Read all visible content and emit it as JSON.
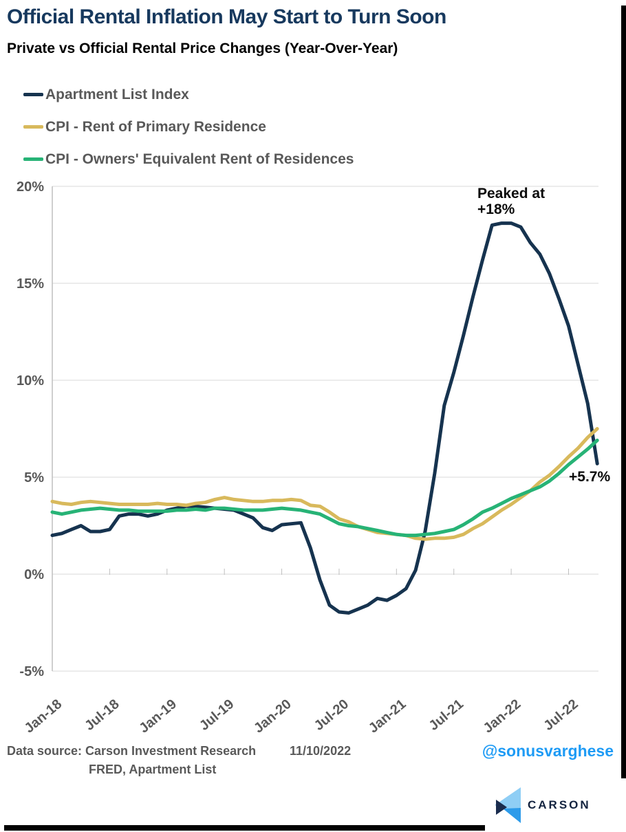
{
  "header": {
    "title": "Official Rental Inflation May Start to Turn Soon",
    "subtitle": "Private vs Official Rental Price Changes (Year-Over-Year)"
  },
  "chart_data": {
    "type": "line",
    "title": "Official Rental Inflation May Start to Turn Soon",
    "subtitle": "Private vs Official Rental Price Changes (Year-Over-Year)",
    "grid": "horizontal",
    "legend_position": "top-left",
    "ylim": [
      -5,
      20
    ],
    "yticks": [
      20,
      15,
      10,
      5,
      0,
      -5
    ],
    "ytick_suffix": "%",
    "x_tick_interval": 6,
    "x": [
      "Jan-18",
      "Feb-18",
      "Mar-18",
      "Apr-18",
      "May-18",
      "Jun-18",
      "Jul-18",
      "Aug-18",
      "Sep-18",
      "Oct-18",
      "Nov-18",
      "Dec-18",
      "Jan-19",
      "Feb-19",
      "Mar-19",
      "Apr-19",
      "May-19",
      "Jun-19",
      "Jul-19",
      "Aug-19",
      "Sep-19",
      "Oct-19",
      "Nov-19",
      "Dec-19",
      "Jan-20",
      "Feb-20",
      "Mar-20",
      "Apr-20",
      "May-20",
      "Jun-20",
      "Jul-20",
      "Aug-20",
      "Sep-20",
      "Oct-20",
      "Nov-20",
      "Dec-20",
      "Jan-21",
      "Feb-21",
      "Mar-21",
      "Apr-21",
      "May-21",
      "Jun-21",
      "Jul-21",
      "Aug-21",
      "Sep-21",
      "Oct-21",
      "Nov-21",
      "Dec-21",
      "Jan-22",
      "Feb-22",
      "Mar-22",
      "Apr-22",
      "May-22",
      "Jun-22",
      "Jul-22",
      "Aug-22",
      "Sep-22",
      "Oct-22"
    ],
    "series": [
      {
        "name": "Apartment List Index",
        "color": "#16334F",
        "values": [
          2.0,
          2.1,
          2.3,
          2.5,
          2.2,
          2.2,
          2.3,
          3.0,
          3.1,
          3.1,
          3.0,
          3.1,
          3.3,
          3.4,
          3.5,
          3.5,
          3.45,
          3.4,
          3.35,
          3.3,
          3.1,
          2.9,
          2.4,
          2.25,
          2.55,
          2.6,
          2.65,
          1.35,
          -0.3,
          -1.6,
          -1.95,
          -2.0,
          -1.8,
          -1.6,
          -1.25,
          -1.35,
          -1.1,
          -0.75,
          0.2,
          2.2,
          5.2,
          8.7,
          10.4,
          12.3,
          14.3,
          16.2,
          18.0,
          18.1,
          18.1,
          17.9,
          17.1,
          16.5,
          15.5,
          14.2,
          12.8,
          10.8,
          8.8,
          5.7
        ]
      },
      {
        "name": "CPI - Rent of Primary Residence",
        "color": "#D8B95C",
        "values": [
          3.75,
          3.65,
          3.6,
          3.7,
          3.75,
          3.7,
          3.65,
          3.6,
          3.6,
          3.6,
          3.6,
          3.65,
          3.6,
          3.6,
          3.55,
          3.65,
          3.7,
          3.85,
          3.95,
          3.85,
          3.8,
          3.75,
          3.75,
          3.8,
          3.8,
          3.85,
          3.8,
          3.55,
          3.5,
          3.2,
          2.85,
          2.7,
          2.45,
          2.3,
          2.15,
          2.1,
          2.05,
          2.0,
          1.85,
          1.8,
          1.85,
          1.85,
          1.9,
          2.05,
          2.35,
          2.6,
          2.95,
          3.3,
          3.6,
          3.95,
          4.3,
          4.75,
          5.1,
          5.55,
          6.05,
          6.5,
          7.05,
          7.5
        ]
      },
      {
        "name": "CPI - Owners' Equivalent Rent of Residences",
        "color": "#27B376",
        "values": [
          3.2,
          3.1,
          3.2,
          3.3,
          3.35,
          3.4,
          3.35,
          3.3,
          3.3,
          3.25,
          3.25,
          3.25,
          3.25,
          3.3,
          3.3,
          3.35,
          3.3,
          3.4,
          3.4,
          3.35,
          3.3,
          3.3,
          3.3,
          3.35,
          3.4,
          3.35,
          3.3,
          3.2,
          3.1,
          2.85,
          2.6,
          2.5,
          2.45,
          2.35,
          2.25,
          2.15,
          2.05,
          2.0,
          2.0,
          2.05,
          2.1,
          2.2,
          2.3,
          2.55,
          2.85,
          3.2,
          3.4,
          3.65,
          3.9,
          4.1,
          4.3,
          4.5,
          4.8,
          5.2,
          5.65,
          6.05,
          6.45,
          6.9
        ]
      }
    ],
    "annotations": [
      {
        "text": "Peaked at +18%",
        "target": "Dec-21"
      },
      {
        "text": "+5.7%",
        "target": "Oct-22"
      }
    ]
  },
  "annotations": {
    "peak_line1": "Peaked at",
    "peak_line2": "+18%",
    "end_label": "+5.7%"
  },
  "footer": {
    "source_line1": "Data source: Carson Investment Research",
    "date": "11/10/2022",
    "source_line2": "FRED, Apartment List",
    "handle": "@sonusvarghese"
  },
  "logo": {
    "text": "CARSON"
  },
  "colors": {
    "title": "#17395E",
    "axis_text": "#595959",
    "gridline": "#D9D9D9",
    "axis_line": "#BFBFBF",
    "handle_blue": "#1E9BF5",
    "logo_navy": "#13233F",
    "logo_light_blue": "#8FCEF5",
    "logo_mid_blue": "#2D9BEA",
    "shadow": "#000000"
  }
}
